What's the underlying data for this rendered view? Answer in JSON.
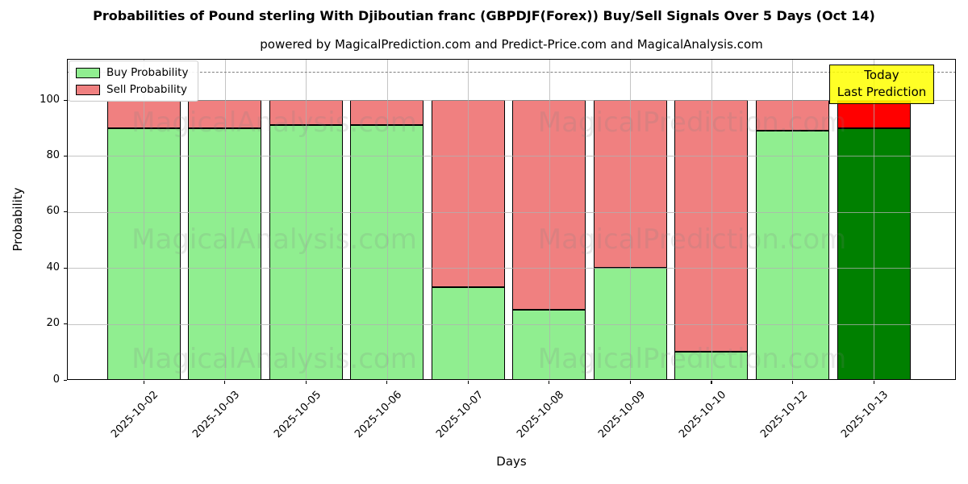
{
  "figure": {
    "title": "Probabilities of Pound sterling With Djiboutian franc (GBPDJF(Forex)) Buy/Sell Signals Over 5 Days (Oct 14)",
    "subtitle": "powered by MagicalPrediction.com and Predict-Price.com and MagicalAnalysis.com"
  },
  "legend": {
    "items": [
      {
        "label": "Buy Probability",
        "color": "#90ee90"
      },
      {
        "label": "Sell Probability",
        "color": "#f08080"
      }
    ]
  },
  "annotation": {
    "line1": "Today",
    "line2": "Last Prediction",
    "bg_color": "#ffff00"
  },
  "watermarks": {
    "left": "MagicalAnalysis.com",
    "right": "MagicalPrediction.com"
  },
  "chart_data": {
    "type": "bar",
    "stacked": true,
    "title": "Probabilities of Pound sterling With Djiboutian franc (GBPDJF(Forex)) Buy/Sell Signals Over 5 Days (Oct 14)",
    "xlabel": "Days",
    "ylabel": "Probability",
    "categories": [
      "2025-10-02",
      "2025-10-03",
      "2025-10-05",
      "2025-10-06",
      "2025-10-07",
      "2025-10-08",
      "2025-10-09",
      "2025-10-10",
      "2025-10-12",
      "2025-10-13"
    ],
    "series": [
      {
        "name": "Buy Probability",
        "color": "#90ee90",
        "today_color": "#008000",
        "values": [
          90,
          90,
          91,
          91,
          33,
          25,
          40,
          10,
          89,
          90
        ]
      },
      {
        "name": "Sell Probability",
        "color": "#f08080",
        "today_color": "#ff0000",
        "values": [
          10,
          10,
          9,
          9,
          67,
          75,
          60,
          90,
          11,
          10
        ]
      }
    ],
    "today_index": 9,
    "yticks": [
      0,
      20,
      40,
      60,
      80,
      100
    ],
    "ylim": [
      0,
      114.7
    ],
    "dashed_line_y": 110,
    "grid": true,
    "legend_position": "upper left",
    "bar_edge_color": "#000000",
    "grid_color": "#b0b0b0"
  }
}
